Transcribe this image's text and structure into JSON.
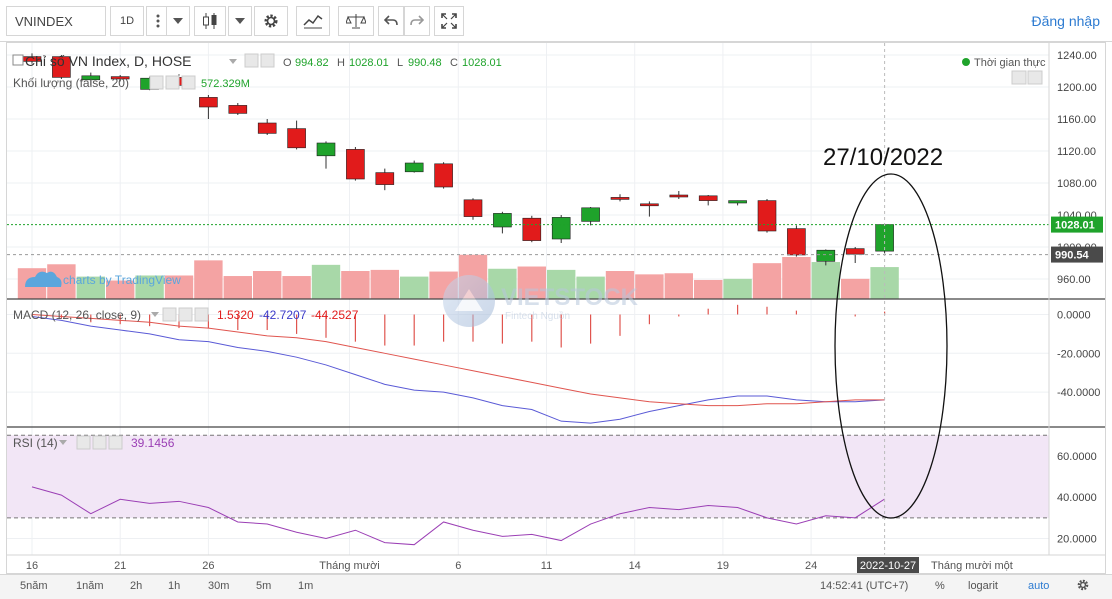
{
  "toolbar": {
    "symbol": "VNINDEX",
    "interval": "1D",
    "login": "Đăng nhập"
  },
  "legend": {
    "title": "Chỉ số VN Index, D, HOSE",
    "o_label": "O",
    "o": "994.82",
    "h_label": "H",
    "h": "1028.01",
    "l_label": "L",
    "l": "990.48",
    "c_label": "C",
    "c": "1028.01",
    "volume_label": "Khối lượng (false, 20)",
    "volume_value": "572.329M",
    "realtime": "Thời gian thực",
    "tradingview": "charts by TradingView",
    "macd_label": "MACD (12, 26, close, 9)",
    "macd_v1": "1.5320",
    "macd_v2": "-42.7207",
    "macd_v3": "-44.2527",
    "rsi_label": "RSI (14)",
    "rsi_value": "39.1456"
  },
  "annotation": "27/10/2022",
  "watermark": "VIETSTOCK",
  "watermark_sub": "Fintech Nguồn",
  "bottom": {
    "ranges": [
      "5năm",
      "1năm",
      "2h",
      "1h",
      "30m",
      "5m",
      "1m"
    ],
    "time": "14:52:41 (UTC+7)",
    "percent": "%",
    "log": "logarit",
    "auto": "auto"
  },
  "chart_data": [
    {
      "type": "candlestick",
      "title": "Chỉ số VN Index, D, HOSE",
      "ylim": [
        935,
        1255
      ],
      "y_ticks": [
        960,
        1000,
        1040,
        1080,
        1120,
        1160,
        1200,
        1240
      ],
      "y_tick_labels": [
        "960.00",
        "1000.00",
        "1040.00",
        "1080.00",
        "1120.00",
        "1160.00",
        "1200.00",
        "1240.00"
      ],
      "price_tags": [
        {
          "value": 1028.01,
          "label": "1028.01"
        },
        {
          "value": 990.54,
          "label": "990.54"
        }
      ],
      "candles": [
        {
          "o": 1238,
          "h": 1242,
          "c": 1232,
          "l": 1229,
          "vol": 0.55
        },
        {
          "o": 1238,
          "h": 1240,
          "c": 1212,
          "l": 1210,
          "vol": 0.62
        },
        {
          "o": 1209,
          "h": 1218,
          "c": 1214,
          "l": 1202,
          "vol": 0.4
        },
        {
          "o": 1213,
          "h": 1215,
          "c": 1210,
          "l": 1207,
          "vol": 0.33
        },
        {
          "o": 1197,
          "h": 1213,
          "c": 1211,
          "l": 1196,
          "vol": 0.42
        },
        {
          "o": 1212,
          "h": 1216,
          "c": 1202,
          "l": 1200,
          "vol": 0.42
        },
        {
          "o": 1187,
          "h": 1190,
          "c": 1175,
          "l": 1160,
          "vol": 0.69
        },
        {
          "o": 1177,
          "h": 1180,
          "c": 1167,
          "l": 1165,
          "vol": 0.41
        },
        {
          "o": 1155,
          "h": 1160,
          "c": 1142,
          "l": 1140,
          "vol": 0.5
        },
        {
          "o": 1148,
          "h": 1158,
          "c": 1124,
          "l": 1122,
          "vol": 0.41
        },
        {
          "o": 1114,
          "h": 1132,
          "c": 1130,
          "l": 1098,
          "vol": 0.61
        },
        {
          "o": 1122,
          "h": 1125,
          "c": 1085,
          "l": 1083,
          "vol": 0.5
        },
        {
          "o": 1093,
          "h": 1098,
          "c": 1078,
          "l": 1071,
          "vol": 0.52
        },
        {
          "o": 1094,
          "h": 1108,
          "c": 1105,
          "l": 1093,
          "vol": 0.4
        },
        {
          "o": 1104,
          "h": 1106,
          "c": 1075,
          "l": 1073,
          "vol": 0.49
        },
        {
          "o": 1059,
          "h": 1061,
          "c": 1038,
          "l": 1034,
          "vol": 0.79
        },
        {
          "o": 1025,
          "h": 1044,
          "c": 1042,
          "l": 1017,
          "vol": 0.54
        },
        {
          "o": 1036,
          "h": 1039,
          "c": 1008,
          "l": 1006,
          "vol": 0.58
        },
        {
          "o": 1010,
          "h": 1040,
          "c": 1037,
          "l": 1005,
          "vol": 0.52
        },
        {
          "o": 1032,
          "h": 1050,
          "c": 1049,
          "l": 1027,
          "vol": 0.4
        },
        {
          "o": 1062,
          "h": 1066,
          "c": 1060,
          "l": 1057,
          "vol": 0.5
        },
        {
          "o": 1054,
          "h": 1057,
          "c": 1052,
          "l": 1038,
          "vol": 0.44
        },
        {
          "o": 1065,
          "h": 1070,
          "c": 1063,
          "l": 1060,
          "vol": 0.46
        },
        {
          "o": 1064,
          "h": 1065,
          "c": 1058,
          "l": 1052,
          "vol": 0.34
        },
        {
          "o": 1055,
          "h": 1058,
          "c": 1058,
          "l": 1052,
          "vol": 0.36
        },
        {
          "o": 1058,
          "h": 1060,
          "c": 1020,
          "l": 1018,
          "vol": 0.64
        },
        {
          "o": 1023,
          "h": 1027,
          "c": 990,
          "l": 988,
          "vol": 0.75
        },
        {
          "o": 982,
          "h": 997,
          "c": 996,
          "l": 977,
          "vol": 0.66
        },
        {
          "o": 998,
          "h": 1000,
          "c": 991,
          "l": 980,
          "vol": 0.36
        },
        {
          "o": 994.82,
          "h": 1028.01,
          "c": 1028.01,
          "l": 990.48,
          "vol": 0.57
        }
      ]
    },
    {
      "type": "line",
      "title": "MACD (12, 26, close, 9)",
      "ylim": [
        -58,
        8
      ],
      "y_ticks": [
        0,
        -20,
        -40
      ],
      "y_tick_labels": [
        "0.0000",
        "-20.0000",
        "-40.0000"
      ],
      "series": [
        {
          "values": [
            -1,
            -3,
            -6,
            -8,
            -10,
            -13,
            -14,
            -17,
            -19,
            -22,
            -26,
            -31,
            -36,
            -39,
            -40,
            -43,
            -47,
            -49,
            -55,
            -56,
            -54,
            -50,
            -47,
            -44,
            -42,
            -42,
            -44,
            -45,
            -45,
            -44
          ]
        },
        {
          "values": [
            0,
            -1,
            -2,
            -3,
            -4,
            -6,
            -7,
            -9,
            -11,
            -12,
            -14,
            -17,
            -20,
            -23,
            -26,
            -29,
            -32,
            -35,
            -38,
            -41,
            -43,
            -45,
            -46,
            -47,
            -47,
            -46,
            -46,
            -45,
            -44,
            -44
          ]
        }
      ],
      "histogram": [
        -1,
        -2,
        -4,
        -5,
        -6,
        -7,
        -7,
        -8,
        -8,
        -10,
        -12,
        -14,
        -16,
        -16,
        -14,
        -14,
        -15,
        -14,
        -17,
        -15,
        -11,
        -5,
        -1,
        3,
        5,
        4,
        2,
        0,
        -1,
        1.5
      ]
    },
    {
      "type": "line",
      "title": "RSI (14)",
      "ylim": [
        12,
        74
      ],
      "y_ticks": [
        20,
        40,
        60
      ],
      "y_tick_labels": [
        "20.0000",
        "40.0000",
        "60.0000"
      ],
      "bands": [
        30,
        70
      ],
      "series": [
        {
          "values": [
            45,
            41,
            32,
            39,
            37,
            38,
            35,
            28,
            27,
            23,
            20,
            24,
            18,
            17,
            28,
            24,
            21,
            22,
            19,
            27,
            32,
            35,
            34,
            36,
            35,
            30,
            27,
            31,
            30,
            39.1
          ]
        }
      ]
    }
  ],
  "x_axis": {
    "labels": [
      {
        "text": "16",
        "index": 0
      },
      {
        "text": "21",
        "index": 3
      },
      {
        "text": "26",
        "index": 6
      },
      {
        "text": "Tháng mười",
        "index": 10.8
      },
      {
        "text": "6",
        "index": 14.5
      },
      {
        "text": "11",
        "index": 17.5
      },
      {
        "text": "14",
        "index": 20.5
      },
      {
        "text": "19",
        "index": 23.5
      },
      {
        "text": "24",
        "index": 26.5
      }
    ],
    "current": "2022-10-27",
    "next_label": "Tháng mười một"
  },
  "colors": {
    "up": "#1fa32b",
    "down": "#e11b1b",
    "vol_up": "#a8d8a8",
    "vol_down": "#f4a3a3",
    "macd": "#5a5ad6",
    "signal": "#e0554f",
    "rsi": "#9b3fb5",
    "link": "#2d7bd1"
  }
}
